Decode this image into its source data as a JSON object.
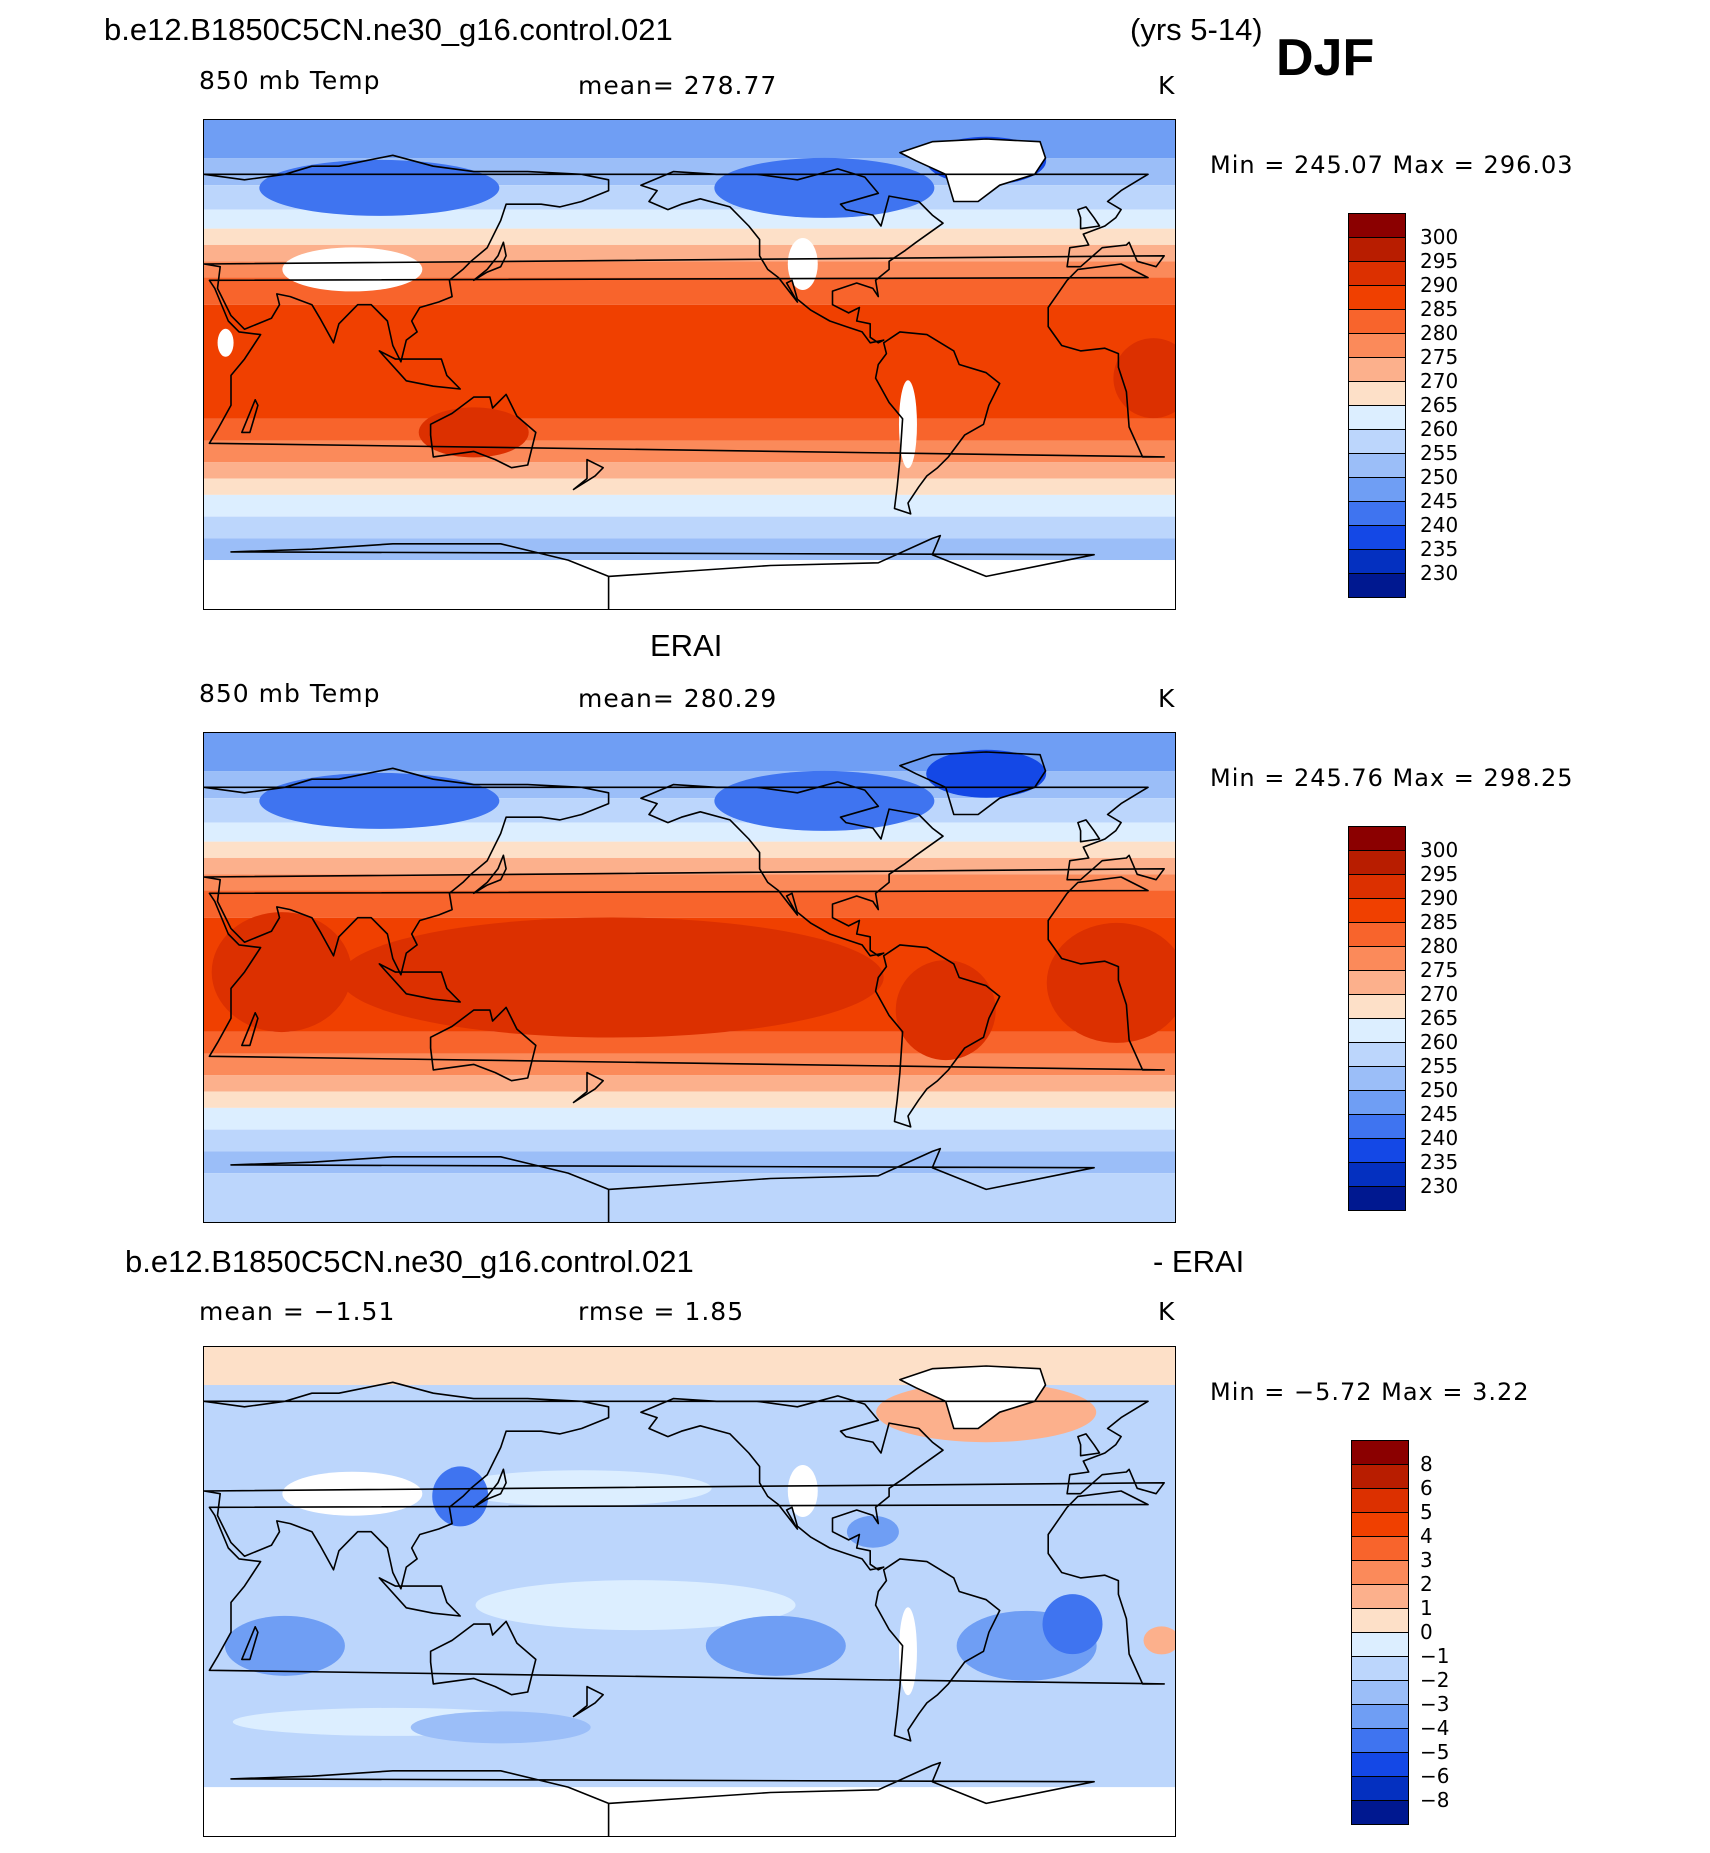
{
  "header": {
    "case_name": "b.e12.B1850C5CN.ne30_g16.control.021",
    "years": "(yrs 5-14)",
    "season": "DJF"
  },
  "panels": [
    {
      "id": "model",
      "title": "",
      "left_label": "850 mb Temp",
      "center_label": "mean= 278.77",
      "units": "K",
      "minmax": "Min = 245.07 Max = 296.03",
      "field": "model"
    },
    {
      "id": "obs",
      "title": "ERAI",
      "left_label": "850 mb Temp",
      "center_label": "mean= 280.29",
      "units": "K",
      "minmax": "Min = 245.76 Max = 298.25",
      "field": "obs"
    },
    {
      "id": "diff",
      "title": "b.e12.B1850C5CN.ne30_g16.control.021",
      "title_right": "- ERAI",
      "left_label": "mean =  −1.51",
      "center_label": "rmse =    1.85",
      "units": "K",
      "minmax": "Min =  −5.72 Max =    3.22",
      "field": "diff"
    }
  ],
  "colorbar_abs": {
    "labels": [
      "300",
      "295",
      "290",
      "285",
      "280",
      "275",
      "270",
      "265",
      "260",
      "255",
      "250",
      "245",
      "240",
      "235",
      "230"
    ],
    "colors": [
      "#8b0000",
      "#b81d00",
      "#dc3000",
      "#f04000",
      "#f8642c",
      "#fb8a5a",
      "#fcb08c",
      "#fde0c8",
      "#dceeff",
      "#bcd6fc",
      "#9bbef8",
      "#6f9ef4",
      "#3f74f0",
      "#1448e6",
      "#0430c0",
      "#001890"
    ]
  },
  "colorbar_diff": {
    "labels": [
      "8",
      "6",
      "5",
      "4",
      "3",
      "2",
      "1",
      "0",
      "−1",
      "−2",
      "−3",
      "−4",
      "−5",
      "−6",
      "−8"
    ],
    "colors": [
      "#8b0000",
      "#b81d00",
      "#dc3000",
      "#f04000",
      "#f8642c",
      "#fb8a5a",
      "#fcb08c",
      "#fde0c8",
      "#dceeff",
      "#bcd6fc",
      "#9bbef8",
      "#6f9ef4",
      "#3f74f0",
      "#1448e6",
      "#0430c0",
      "#001890"
    ]
  }
}
